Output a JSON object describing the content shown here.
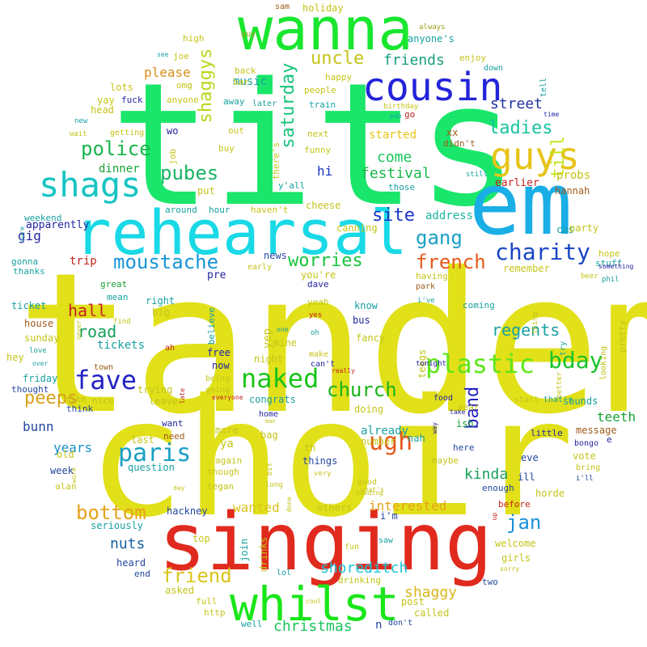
{
  "words": [
    {
      "text": "tandem",
      "color": "#e1e019"
    },
    {
      "text": "choir",
      "color": "#e1e019"
    },
    {
      "text": "tits",
      "color": "#19e66a"
    },
    {
      "text": "singing",
      "color": "#e02a1e"
    },
    {
      "text": "em",
      "color": "#19aee6"
    },
    {
      "text": "rehearsal",
      "color": "#19d9e6"
    },
    {
      "text": "wanna",
      "color": "#19e62f"
    },
    {
      "text": "whilst",
      "color": "#19e619"
    },
    {
      "text": "cousin",
      "color": "#2323d9"
    },
    {
      "text": "guys",
      "color": "#e6c419"
    },
    {
      "text": "shags",
      "color": "#19c4c4"
    },
    {
      "text": "naked",
      "color": "#19c419"
    },
    {
      "text": "plastic",
      "color": "#5ee619"
    },
    {
      "text": "fave",
      "color": "#2323c4"
    },
    {
      "text": "paris",
      "color": "#19a0c4"
    },
    {
      "text": "ugh",
      "color": "#e6591d"
    },
    {
      "text": "bday",
      "color": "#19c42a"
    },
    {
      "text": "charity",
      "color": "#1947c4"
    },
    {
      "text": "moustache",
      "color": "#1995d9"
    },
    {
      "text": "french",
      "color": "#e6591d"
    },
    {
      "text": "police",
      "color": "#19b54b"
    },
    {
      "text": "church",
      "color": "#19b519"
    },
    {
      "text": "gang",
      "color": "#19a0c4"
    },
    {
      "text": "pubes",
      "color": "#19b565"
    },
    {
      "text": "saturday",
      "color": "#19c47d"
    },
    {
      "text": "uncle",
      "color": "#c4c419"
    },
    {
      "text": "shaggys",
      "color": "#b5d919"
    },
    {
      "text": "till",
      "color": "#c4e619"
    },
    {
      "text": "jan",
      "color": "#1990d9"
    },
    {
      "text": "bottom",
      "color": "#e6a319"
    },
    {
      "text": "friend",
      "color": "#d9c419"
    },
    {
      "text": "worries",
      "color": "#19c43d"
    },
    {
      "text": "peeps",
      "color": "#d9a019"
    },
    {
      "text": "band",
      "color": "#2323c4"
    },
    {
      "text": "site",
      "color": "#1935c4"
    },
    {
      "text": "ladies",
      "color": "#19c4a0"
    },
    {
      "text": "hall",
      "color": "#c4231d"
    },
    {
      "text": "road",
      "color": "#19a05b"
    },
    {
      "text": "come",
      "color": "#19c45b"
    },
    {
      "text": "festival",
      "color": "#19b54b"
    },
    {
      "text": "regents",
      "color": "#19a0a0"
    },
    {
      "text": "kinda",
      "color": "#19a05b"
    },
    {
      "text": "street",
      "color": "#2335a0"
    },
    {
      "text": "friends",
      "color": "#19a07d"
    },
    {
      "text": "nuts",
      "color": "#1960a0"
    },
    {
      "text": "shoreditch",
      "color": "#19c4d9"
    },
    {
      "text": "christmas",
      "color": "#19c45b"
    },
    {
      "text": "shaggy",
      "color": "#d9b519"
    },
    {
      "text": "interested",
      "color": "#e6a319"
    },
    {
      "text": "wanted",
      "color": "#d9c419"
    },
    {
      "text": "teeth",
      "color": "#19a035"
    },
    {
      "text": "years",
      "color": "#1990c4"
    },
    {
      "text": "bunn",
      "color": "#2347a0"
    },
    {
      "text": "gig",
      "color": "#2323a0"
    },
    {
      "text": "hi",
      "color": "#1935c4"
    },
    {
      "text": "trip",
      "color": "#c4231d"
    },
    {
      "text": "music",
      "color": "#19a0a0"
    },
    {
      "text": "please",
      "color": "#d99019"
    },
    {
      "text": "tickets",
      "color": "#19a0a0"
    },
    {
      "text": "dinner",
      "color": "#19a035"
    },
    {
      "text": "probs",
      "color": "#c4c419"
    },
    {
      "text": "started",
      "color": "#e6c419"
    },
    {
      "text": "address",
      "color": "#19b5a0"
    },
    {
      "text": "anyone's",
      "color": "#19a0a0"
    },
    {
      "text": "holiday",
      "color": "#c4c419"
    },
    {
      "text": "enjoy",
      "color": "#c4c419"
    },
    {
      "text": "joe",
      "color": "#c4c419"
    },
    {
      "text": "high",
      "color": "#c4c419"
    },
    {
      "text": "guy",
      "color": "#a0a019"
    },
    {
      "text": "sam",
      "color": "#a05a19"
    },
    {
      "text": "always",
      "color": "#a0a019"
    },
    {
      "text": "see",
      "color": "#19a0a0"
    },
    {
      "text": "omg",
      "color": "#c4c419"
    },
    {
      "text": "lots",
      "color": "#c4c419"
    },
    {
      "text": "anyone",
      "color": "#c4c419"
    },
    {
      "text": "happy",
      "color": "#c4c419"
    },
    {
      "text": "people",
      "color": "#c4c419"
    },
    {
      "text": "back",
      "color": "#c4c419"
    },
    {
      "text": "bar",
      "color": "#c4c419"
    },
    {
      "text": "train",
      "color": "#19a0a0"
    },
    {
      "text": "away",
      "color": "#19a0a0"
    },
    {
      "text": "later",
      "color": "#19a0a0"
    },
    {
      "text": "head",
      "color": "#c4c419"
    },
    {
      "text": "yay",
      "color": "#c4c419"
    },
    {
      "text": "fuck",
      "color": "#2323a0"
    },
    {
      "text": "new",
      "color": "#19a0a0"
    },
    {
      "text": "wait",
      "color": "#c4c419"
    },
    {
      "text": "getting",
      "color": "#c4c419"
    },
    {
      "text": "wo",
      "color": "#2323a0"
    },
    {
      "text": "job",
      "color": "#c4c419"
    },
    {
      "text": "out",
      "color": "#c4c419"
    },
    {
      "text": "buy",
      "color": "#c4c419"
    },
    {
      "text": "next",
      "color": "#c4c419"
    },
    {
      "text": "there's",
      "color": "#c4c419"
    },
    {
      "text": "funny",
      "color": "#c4c419"
    },
    {
      "text": "xx",
      "color": "#a05a19"
    },
    {
      "text": "didn't",
      "color": "#a05a19"
    },
    {
      "text": "go",
      "color": "#c4231d"
    },
    {
      "text": "birthday",
      "color": "#c4c419"
    },
    {
      "text": "pub",
      "color": "#19a0a0"
    },
    {
      "text": "time",
      "color": "#2323a0"
    },
    {
      "text": "down",
      "color": "#19a0a0"
    },
    {
      "text": "tell",
      "color": "#19a0a0"
    },
    {
      "text": "still",
      "color": "#19a0a0"
    },
    {
      "text": "earlier",
      "color": "#c4231d"
    },
    {
      "text": "hannah",
      "color": "#a05a19"
    },
    {
      "text": "cos",
      "color": "#19a0a0"
    },
    {
      "text": "those",
      "color": "#19a0a0"
    },
    {
      "text": "y'all",
      "color": "#19a0a0"
    },
    {
      "text": "put",
      "color": "#c4c419"
    },
    {
      "text": "around",
      "color": "#19a0a0"
    },
    {
      "text": "hour",
      "color": "#19a0a0"
    },
    {
      "text": "haven't",
      "color": "#c4c419"
    },
    {
      "text": "cheese",
      "color": "#c4c419"
    },
    {
      "text": "canning",
      "color": "#c4c419"
    },
    {
      "text": "apparently",
      "color": "#2323a0"
    },
    {
      "text": "weekend",
      "color": "#19a0a0"
    },
    {
      "text": "sure",
      "color": "#19a0a0"
    },
    {
      "text": "party",
      "color": "#c4c419"
    },
    {
      "text": "stuff",
      "color": "#19a0a0"
    },
    {
      "text": "hope",
      "color": "#c4c419"
    },
    {
      "text": "something",
      "color": "#2323a0"
    },
    {
      "text": "phil",
      "color": "#19a0a0"
    },
    {
      "text": "gonna",
      "color": "#19a0a0"
    },
    {
      "text": "thanks",
      "color": "#19a0a0"
    },
    {
      "text": "news",
      "color": "#2347a0"
    },
    {
      "text": "early",
      "color": "#c4c419"
    },
    {
      "text": "you're",
      "color": "#c4c419"
    },
    {
      "text": "remember",
      "color": "#c4c419"
    },
    {
      "text": "beer",
      "color": "#c4c419"
    },
    {
      "text": "pre",
      "color": "#2323a0"
    },
    {
      "text": "dave",
      "color": "#2323a0"
    },
    {
      "text": "having",
      "color": "#c4c419"
    },
    {
      "text": "park",
      "color": "#a05a19"
    },
    {
      "text": "i've",
      "color": "#19a0a0"
    },
    {
      "text": "coming",
      "color": "#19a0a0"
    },
    {
      "text": "pretty",
      "color": "#c4c419"
    },
    {
      "text": "great",
      "color": "#19a035"
    },
    {
      "text": "mean",
      "color": "#19a0a0"
    },
    {
      "text": "right",
      "color": "#19a0a0"
    },
    {
      "text": "believe",
      "color": "#19a0a0"
    },
    {
      "text": "yeah",
      "color": "#c4c419"
    },
    {
      "text": "yes",
      "color": "#c4231d"
    },
    {
      "text": "know",
      "color": "#19a0a0"
    },
    {
      "text": "thing",
      "color": "#c4c419"
    },
    {
      "text": "ticket",
      "color": "#19a0a0"
    },
    {
      "text": "never",
      "color": "#c4c419"
    },
    {
      "text": "find",
      "color": "#c4c419"
    },
    {
      "text": "house",
      "color": "#a05a19"
    },
    {
      "text": "sunday",
      "color": "#c4c419"
    },
    {
      "text": "big",
      "color": "#c4c419"
    },
    {
      "text": "yep",
      "color": "#c4c419"
    },
    {
      "text": "one",
      "color": "#19a0a0"
    },
    {
      "text": "oh",
      "color": "#19a0a0"
    },
    {
      "text": "bus",
      "color": "#2323a0"
    },
    {
      "text": "fancy",
      "color": "#c4c419"
    },
    {
      "text": "try",
      "color": "#19a0a0"
    },
    {
      "text": "looking",
      "color": "#c4c419"
    },
    {
      "text": "hey",
      "color": "#c4c419"
    },
    {
      "text": "love",
      "color": "#19a0a0"
    },
    {
      "text": "over",
      "color": "#19a0a0"
    },
    {
      "text": "ah",
      "color": "#c4231d"
    },
    {
      "text": "mine",
      "color": "#c4c419"
    },
    {
      "text": "free",
      "color": "#2323a0"
    },
    {
      "text": "now",
      "color": "#2323a0"
    },
    {
      "text": "night",
      "color": "#c4c419"
    },
    {
      "text": "make",
      "color": "#c4c419"
    },
    {
      "text": "can't",
      "color": "#2323a0"
    },
    {
      "text": "really",
      "color": "#c4231d"
    },
    {
      "text": "teegs",
      "color": "#c4c419"
    },
    {
      "text": "tonight",
      "color": "#2323a0"
    },
    {
      "text": "friday",
      "color": "#19a0a0"
    },
    {
      "text": "town",
      "color": "#a05a19"
    },
    {
      "text": "better",
      "color": "#c4c419"
    },
    {
      "text": "thought",
      "color": "#2347a0"
    },
    {
      "text": "trying",
      "color": "#c4c419"
    },
    {
      "text": "being",
      "color": "#c4c419"
    },
    {
      "text": "going",
      "color": "#c4c419"
    },
    {
      "text": "congrats",
      "color": "#19a0a0"
    },
    {
      "text": "food",
      "color": "#2323a0"
    },
    {
      "text": "start",
      "color": "#c4c419"
    },
    {
      "text": "that's",
      "color": "#19a0a0"
    },
    {
      "text": "sounds",
      "color": "#19a0a0"
    },
    {
      "text": "late",
      "color": "#c4231d"
    },
    {
      "text": "everyone",
      "color": "#c4231d"
    },
    {
      "text": "year",
      "color": "#c4c419"
    },
    {
      "text": "mike",
      "color": "#c4c419"
    },
    {
      "text": "nice",
      "color": "#c4c419"
    },
    {
      "text": "leave",
      "color": "#c4c419"
    },
    {
      "text": "home",
      "color": "#2323a0"
    },
    {
      "text": "man",
      "color": "#c4c419"
    },
    {
      "text": "doing",
      "color": "#c4c419"
    },
    {
      "text": "take",
      "color": "#2323a0"
    },
    {
      "text": "way",
      "color": "#2323a0"
    },
    {
      "text": "message",
      "color": "#a05a19"
    },
    {
      "text": "think",
      "color": "#2347a0"
    },
    {
      "text": "want",
      "color": "#2323a0"
    },
    {
      "text": "ish",
      "color": "#19a035"
    },
    {
      "text": "little",
      "color": "#2323a0"
    },
    {
      "text": "bongo",
      "color": "#2323a0"
    },
    {
      "text": "e",
      "color": "#2323a0"
    },
    {
      "text": "need",
      "color": "#a05a19"
    },
    {
      "text": "more",
      "color": "#c4c419"
    },
    {
      "text": "bag",
      "color": "#c4c419"
    },
    {
      "text": "already",
      "color": "#19a0a0"
    },
    {
      "text": "nah",
      "color": "#19a0a0"
    },
    {
      "text": "here",
      "color": "#2347a0"
    },
    {
      "text": "last",
      "color": "#c4c419"
    },
    {
      "text": "ya",
      "color": "#c4c419"
    },
    {
      "text": "th",
      "color": "#c4c419"
    },
    {
      "text": "number",
      "color": "#c4c419"
    },
    {
      "text": "eve",
      "color": "#2347a0"
    },
    {
      "text": "vote",
      "color": "#c4c419"
    },
    {
      "text": "bring",
      "color": "#c4c419"
    },
    {
      "text": "old",
      "color": "#c4c419"
    },
    {
      "text": "question",
      "color": "#19a0a0"
    },
    {
      "text": "work",
      "color": "#c4c419"
    },
    {
      "text": "again",
      "color": "#c4c419"
    },
    {
      "text": "things",
      "color": "#2347a0"
    },
    {
      "text": "maybe",
      "color": "#c4c419"
    },
    {
      "text": "week",
      "color": "#2347a0"
    },
    {
      "text": "though",
      "color": "#c4c419"
    },
    {
      "text": "good",
      "color": "#c4c419"
    },
    {
      "text": "what's",
      "color": "#c4c419"
    },
    {
      "text": "ill",
      "color": "#2347a0"
    },
    {
      "text": "i'll",
      "color": "#2347a0"
    },
    {
      "text": "alan",
      "color": "#c4c419"
    },
    {
      "text": "tegan",
      "color": "#c4c419"
    },
    {
      "text": "bit",
      "color": "#c4c419"
    },
    {
      "text": "day",
      "color": "#c4c419"
    },
    {
      "text": "long",
      "color": "#c4c419"
    },
    {
      "text": "done",
      "color": "#c4c419"
    },
    {
      "text": "very",
      "color": "#c4c419"
    },
    {
      "text": "heading",
      "color": "#c4c419"
    },
    {
      "text": "enough",
      "color": "#2347a0"
    },
    {
      "text": "horde",
      "color": "#c4c419"
    },
    {
      "text": "hackney",
      "color": "#2347a0"
    },
    {
      "text": "others",
      "color": "#c4c419"
    },
    {
      "text": "i'm",
      "color": "#2347a0"
    },
    {
      "text": "up",
      "color": "#c4231d"
    },
    {
      "text": "before",
      "color": "#c4231d"
    },
    {
      "text": "welcome",
      "color": "#c4c419"
    },
    {
      "text": "seriously",
      "color": "#19a0a0"
    },
    {
      "text": "top",
      "color": "#c4c419"
    },
    {
      "text": "join",
      "color": "#19a0a0"
    },
    {
      "text": "drinks",
      "color": "#c4c419"
    },
    {
      "text": "fun",
      "color": "#c4c419"
    },
    {
      "text": "saw",
      "color": "#19a0a0"
    },
    {
      "text": "girls",
      "color": "#c4c419"
    },
    {
      "text": "heard",
      "color": "#2347a0"
    },
    {
      "text": "end",
      "color": "#2347a0"
    },
    {
      "text": "lol",
      "color": "#19a0a0"
    },
    {
      "text": "drinking",
      "color": "#c4c419"
    },
    {
      "text": "sorry",
      "color": "#c4c419"
    },
    {
      "text": "asked",
      "color": "#c4c419"
    },
    {
      "text": "two",
      "color": "#2347a0"
    },
    {
      "text": "full",
      "color": "#c4c419"
    },
    {
      "text": "post",
      "color": "#c4c419"
    },
    {
      "text": "cool",
      "color": "#c4c419"
    },
    {
      "text": "http",
      "color": "#c4c419"
    },
    {
      "text": "called",
      "color": "#c4c419"
    },
    {
      "text": "well",
      "color": "#19a0a0"
    },
    {
      "text": "don't",
      "color": "#2347a0"
    },
    {
      "text": "n",
      "color": "#2347a0"
    }
  ]
}
